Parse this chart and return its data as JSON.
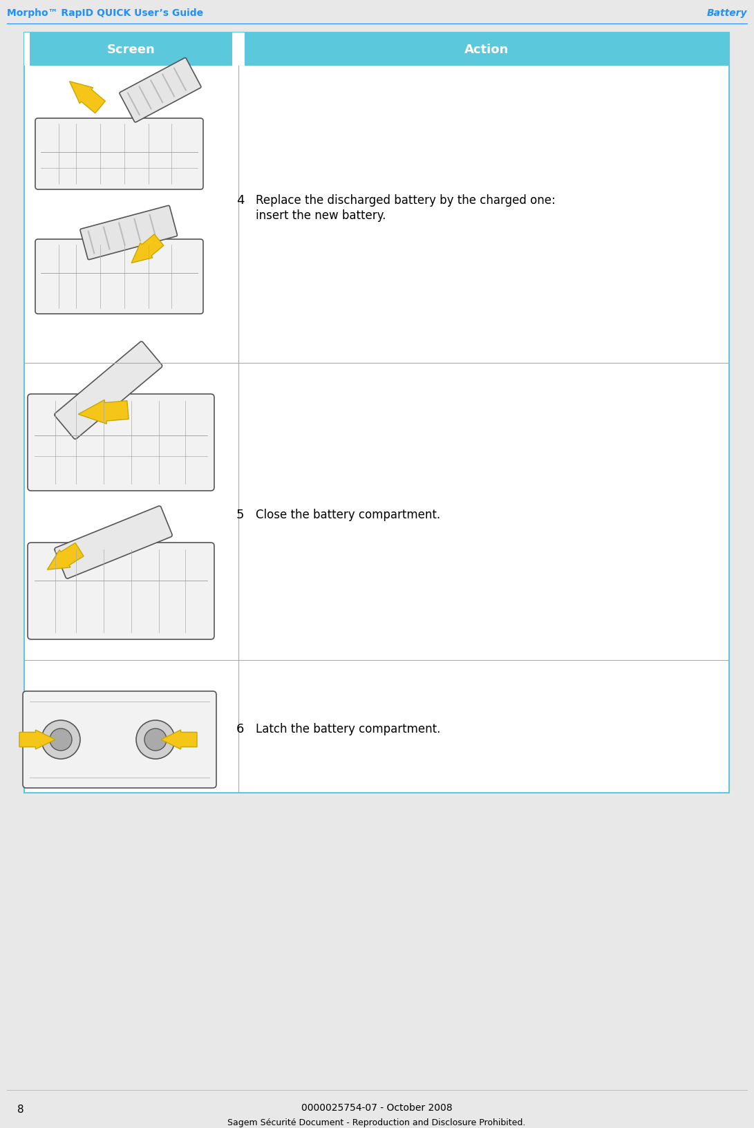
{
  "header_left": "Morpho™ RapID QUICK User’s Guide",
  "header_right": "Battery",
  "header_color": "#1E90FF",
  "footer_page": "8",
  "footer_center": "0000025754-07 - October 2008",
  "footer_bottom": "Sagem Sécurité Document - Reproduction and Disclosure Prohibited.",
  "table_header_bg": "#5BC8DC",
  "table_header_text": "white",
  "table_border_color": "#5BC8DC",
  "table_bg": "white",
  "col1_header": "Screen",
  "col2_header": "Action",
  "steps": [
    {
      "number": "4",
      "action_line1": "Replace the discharged battery by the charged one:",
      "action_line2": "insert the new battery."
    },
    {
      "number": "5",
      "action_line1": "Close the battery compartment.",
      "action_line2": ""
    },
    {
      "number": "6",
      "action_line1": "Latch the battery compartment.",
      "action_line2": ""
    }
  ],
  "outer_border_color": "#5BC8DC",
  "outer_border_lw": 2,
  "bg_color": "white",
  "page_bg": "#e8e8e8"
}
